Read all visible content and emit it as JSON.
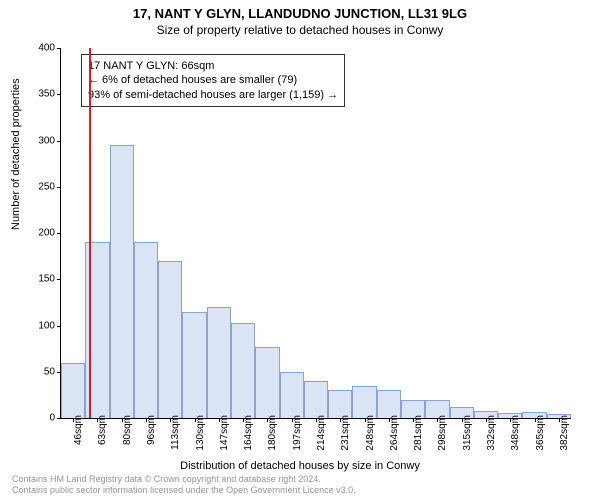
{
  "chart": {
    "type": "histogram",
    "title_main": "17, NANT Y GLYN, LLANDUDNO JUNCTION, LL31 9LG",
    "title_sub": "Size of property relative to detached houses in Conwy",
    "ylabel": "Number of detached properties",
    "xlabel": "Distribution of detached houses by size in Conwy",
    "ylim": [
      0,
      400
    ],
    "yticks": [
      0,
      50,
      100,
      150,
      200,
      250,
      300,
      350,
      400
    ],
    "xticks": [
      "46sqm",
      "63sqm",
      "80sqm",
      "96sqm",
      "113sqm",
      "130sqm",
      "147sqm",
      "164sqm",
      "180sqm",
      "197sqm",
      "214sqm",
      "231sqm",
      "248sqm",
      "264sqm",
      "281sqm",
      "298sqm",
      "315sqm",
      "332sqm",
      "348sqm",
      "365sqm",
      "382sqm"
    ],
    "bars": [
      60,
      190,
      295,
      190,
      170,
      115,
      120,
      103,
      77,
      50,
      40,
      30,
      35,
      30,
      20,
      20,
      12,
      8,
      5,
      6,
      4
    ],
    "bar_fill": "#dbe4f5",
    "bar_stroke": "#8aa3cf",
    "marker_index_fractional": 1.15,
    "marker_color": "#d42020",
    "info_lines": [
      "17 NANT Y GLYN: 66sqm",
      "← 6% of detached houses are smaller (79)",
      "93% of semi-detached houses are larger (1,159) →"
    ],
    "background": "#ffffff",
    "axis_color": "#000000",
    "footer_color": "#969696"
  },
  "footer": {
    "line1": "Contains HM Land Registry data © Crown copyright and database right 2024.",
    "line2": "Contains public sector information licensed under the Open Government Licence v3.0."
  }
}
